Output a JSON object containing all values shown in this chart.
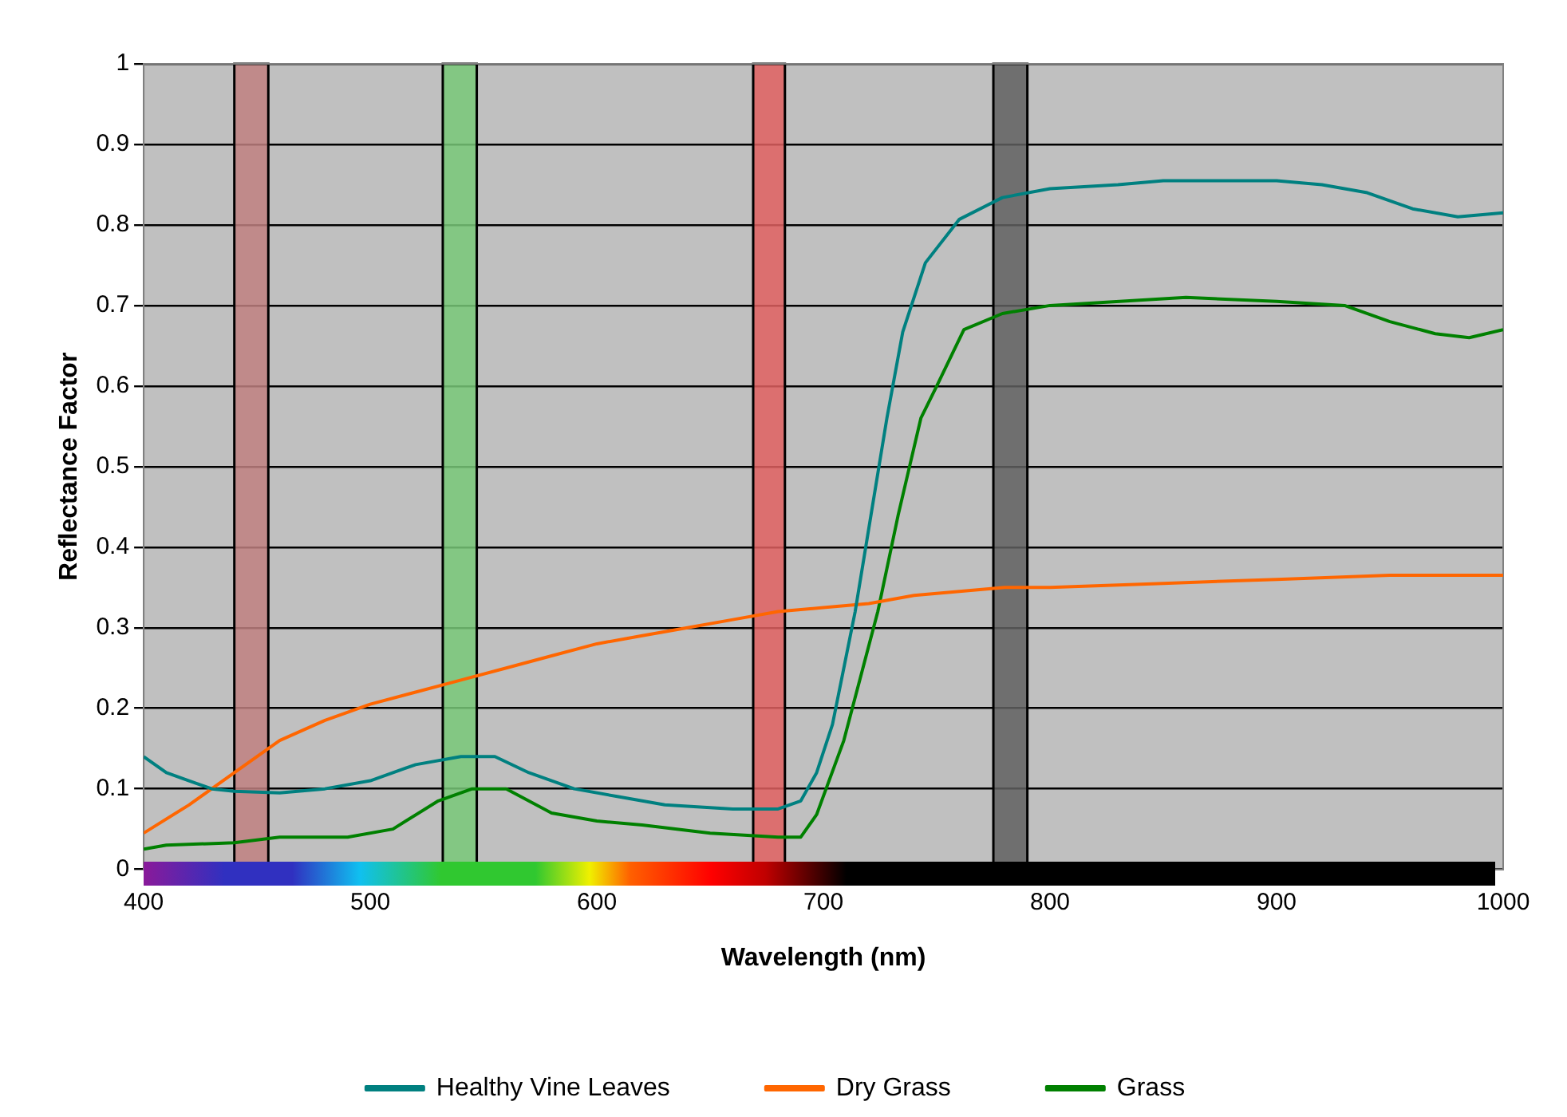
{
  "chart_data": {
    "type": "line",
    "xlabel": "Wavelength (nm)",
    "ylabel": "Reflectance Factor",
    "xlim": [
      400,
      1000
    ],
    "xticks": [
      400,
      500,
      600,
      700,
      800,
      900,
      1000
    ],
    "ylim": [
      0,
      1
    ],
    "yticks": [
      0,
      0.1,
      0.2,
      0.3,
      0.4,
      0.5,
      0.6,
      0.7,
      0.8,
      0.9,
      1
    ],
    "grid": "y",
    "legend": "bottom",
    "marker": "none",
    "line_style": "solid",
    "series": [
      {
        "name": "Healthy Vine Leaves",
        "color": "#008080",
        "x": [
          400,
          410,
          420,
          430,
          440,
          460,
          480,
          500,
          520,
          540,
          555,
          570,
          590,
          610,
          630,
          660,
          680,
          690,
          697,
          704,
          714,
          721,
          728,
          735,
          745,
          760,
          779,
          800,
          830,
          850,
          900,
          920,
          940,
          960,
          980,
          1000
        ],
        "values": [
          0.14,
          0.12,
          0.11,
          0.1,
          0.097,
          0.095,
          0.1,
          0.11,
          0.13,
          0.14,
          0.14,
          0.12,
          0.1,
          0.09,
          0.08,
          0.075,
          0.075,
          0.085,
          0.12,
          0.18,
          0.32,
          0.44,
          0.56,
          0.667,
          0.753,
          0.807,
          0.834,
          0.845,
          0.85,
          0.855,
          0.855,
          0.85,
          0.84,
          0.82,
          0.81,
          0.815
        ]
      },
      {
        "name": "Dry Grass",
        "color": "#ff6600",
        "x": [
          400,
          420,
          440,
          460,
          480,
          500,
          520,
          540,
          560,
          580,
          600,
          620,
          640,
          660,
          680,
          700,
          720,
          740,
          760,
          780,
          800,
          850,
          900,
          950,
          1000
        ],
        "values": [
          0.045,
          0.08,
          0.12,
          0.16,
          0.185,
          0.205,
          0.22,
          0.235,
          0.25,
          0.265,
          0.28,
          0.29,
          0.3,
          0.31,
          0.32,
          0.325,
          0.33,
          0.34,
          0.345,
          0.35,
          0.35,
          0.355,
          0.36,
          0.365,
          0.365
        ]
      },
      {
        "name": "Grass",
        "color": "#008000",
        "x": [
          400,
          410,
          440,
          460,
          490,
          510,
          530,
          545,
          560,
          580,
          600,
          620,
          650,
          680,
          690,
          697,
          709,
          724,
          733,
          743,
          750,
          762,
          779,
          800,
          860,
          900,
          930,
          950,
          970,
          985,
          1000
        ],
        "values": [
          0.025,
          0.03,
          0.033,
          0.04,
          0.04,
          0.05,
          0.085,
          0.1,
          0.1,
          0.07,
          0.06,
          0.055,
          0.045,
          0.04,
          0.04,
          0.068,
          0.16,
          0.32,
          0.44,
          0.56,
          0.6,
          0.67,
          0.69,
          0.7,
          0.71,
          0.705,
          0.7,
          0.68,
          0.665,
          0.66,
          0.67
        ]
      }
    ],
    "bands": [
      {
        "axis": "x",
        "from": 440,
        "to": 455,
        "color": "#c08080"
      },
      {
        "axis": "x",
        "from": 532,
        "to": 547,
        "color": "#78c878"
      },
      {
        "axis": "x",
        "from": 669,
        "to": 683,
        "color": "#e06060"
      },
      {
        "axis": "x",
        "from": 775,
        "to": 790,
        "color": "#606060"
      }
    ]
  }
}
